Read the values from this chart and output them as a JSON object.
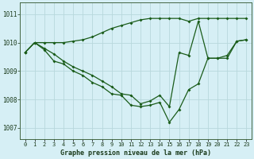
{
  "title": "Graphe pression niveau de la mer (hPa)",
  "bg_color": "#d6eff5",
  "grid_color": "#b8d8dc",
  "line_color": "#1a5c1a",
  "x_labels": [
    "0",
    "1",
    "2",
    "3",
    "4",
    "5",
    "6",
    "7",
    "8",
    "9",
    "10",
    "11",
    "12",
    "13",
    "14",
    "15",
    "16",
    "17",
    "18",
    "19",
    "20",
    "21",
    "22",
    "23"
  ],
  "ylim": [
    1006.6,
    1011.4
  ],
  "yticks": [
    1007,
    1008,
    1009,
    1010,
    1011
  ],
  "series_top": [
    1009.65,
    1010.0,
    1010.0,
    1010.0,
    1010.0,
    1010.05,
    1010.1,
    1010.2,
    1010.35,
    1010.5,
    1010.6,
    1010.7,
    1010.8,
    1010.85,
    1010.85,
    1010.85,
    1010.85,
    1010.75,
    1010.85,
    1010.85,
    1010.85,
    1010.85,
    1010.85,
    1010.85
  ],
  "series_mid": [
    1009.65,
    1010.0,
    1009.8,
    1009.6,
    1009.35,
    1009.15,
    1009.0,
    1008.85,
    1008.65,
    1008.45,
    1008.2,
    1008.15,
    1007.85,
    1007.95,
    1008.15,
    1007.75,
    1009.65,
    1009.55,
    1010.75,
    1009.45,
    1009.45,
    1009.55,
    1010.05,
    1010.1
  ],
  "series_bot": [
    1009.65,
    1010.0,
    1009.75,
    1009.35,
    1009.25,
    1009.0,
    1008.85,
    1008.6,
    1008.45,
    1008.2,
    1008.15,
    1007.8,
    1007.75,
    1007.8,
    1007.9,
    1007.2,
    1007.65,
    1008.35,
    1008.55,
    1009.45,
    1009.45,
    1009.45,
    1010.05,
    1010.1
  ]
}
